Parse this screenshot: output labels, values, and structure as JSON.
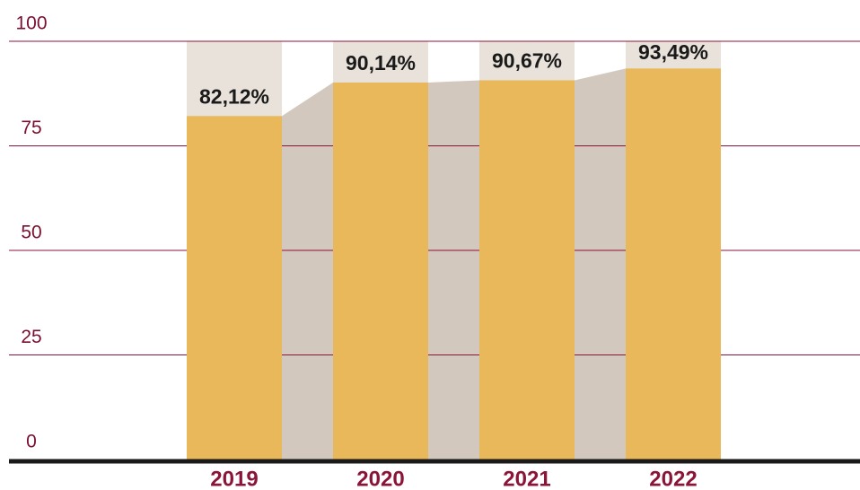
{
  "chart_data": {
    "type": "bar",
    "categories": [
      "2019",
      "2020",
      "2021",
      "2022"
    ],
    "values": [
      82.12,
      90.14,
      90.67,
      93.49
    ],
    "value_labels": [
      "82,12%",
      "90,14%",
      "90,67%",
      "93,49%"
    ],
    "color": "#e8b85a",
    "ylim": [
      0,
      100
    ],
    "yticks": [
      0,
      25,
      50,
      75,
      100
    ],
    "grid": true
  }
}
